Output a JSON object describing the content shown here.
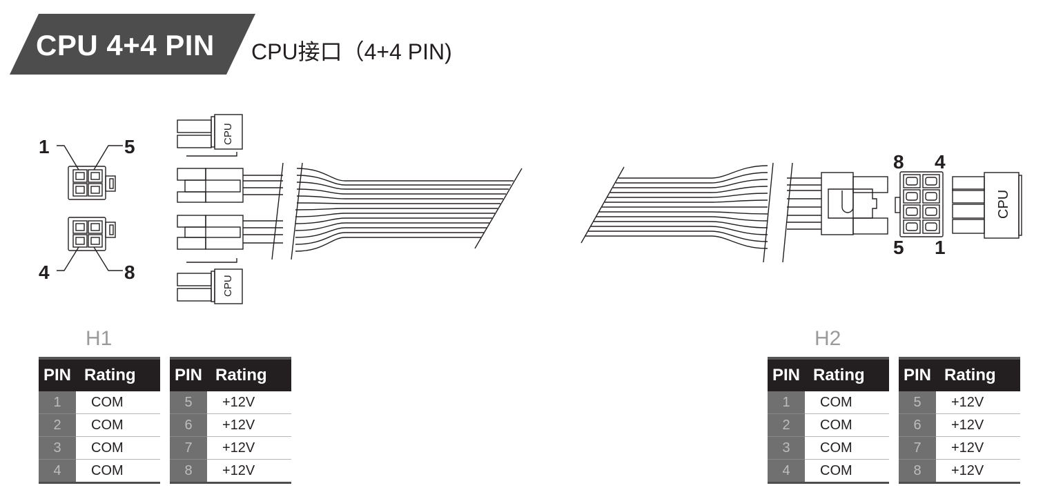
{
  "title": {
    "main": "CPU 4+4 PIN",
    "sub": "CPU接口（4+4 PIN)"
  },
  "connector_label": "CPU",
  "left_pin_numbers": {
    "top_left": "1",
    "top_right": "5",
    "bottom_left": "4",
    "bottom_right": "8"
  },
  "right_pin_numbers": {
    "top_left": "8",
    "top_right": "4",
    "bottom_left": "5",
    "bottom_right": "1"
  },
  "headers": {
    "h1": {
      "label": "H1",
      "tables": [
        {
          "col_pin": "PIN",
          "col_rating": "Rating",
          "rows": [
            {
              "pin": "1",
              "rating": "COM"
            },
            {
              "pin": "2",
              "rating": "COM"
            },
            {
              "pin": "3",
              "rating": "COM"
            },
            {
              "pin": "4",
              "rating": "COM"
            }
          ]
        },
        {
          "col_pin": "PIN",
          "col_rating": "Rating",
          "rows": [
            {
              "pin": "5",
              "rating": "+12V"
            },
            {
              "pin": "6",
              "rating": "+12V"
            },
            {
              "pin": "7",
              "rating": "+12V"
            },
            {
              "pin": "8",
              "rating": "+12V"
            }
          ]
        }
      ]
    },
    "h2": {
      "label": "H2",
      "tables": [
        {
          "col_pin": "PIN",
          "col_rating": "Rating",
          "rows": [
            {
              "pin": "1",
              "rating": "COM"
            },
            {
              "pin": "2",
              "rating": "COM"
            },
            {
              "pin": "3",
              "rating": "COM"
            },
            {
              "pin": "4",
              "rating": "COM"
            }
          ]
        },
        {
          "col_pin": "PIN",
          "col_rating": "Rating",
          "rows": [
            {
              "pin": "5",
              "rating": "+12V"
            },
            {
              "pin": "6",
              "rating": "+12V"
            },
            {
              "pin": "7",
              "rating": "+12V"
            },
            {
              "pin": "8",
              "rating": "+12V"
            }
          ]
        }
      ]
    }
  }
}
